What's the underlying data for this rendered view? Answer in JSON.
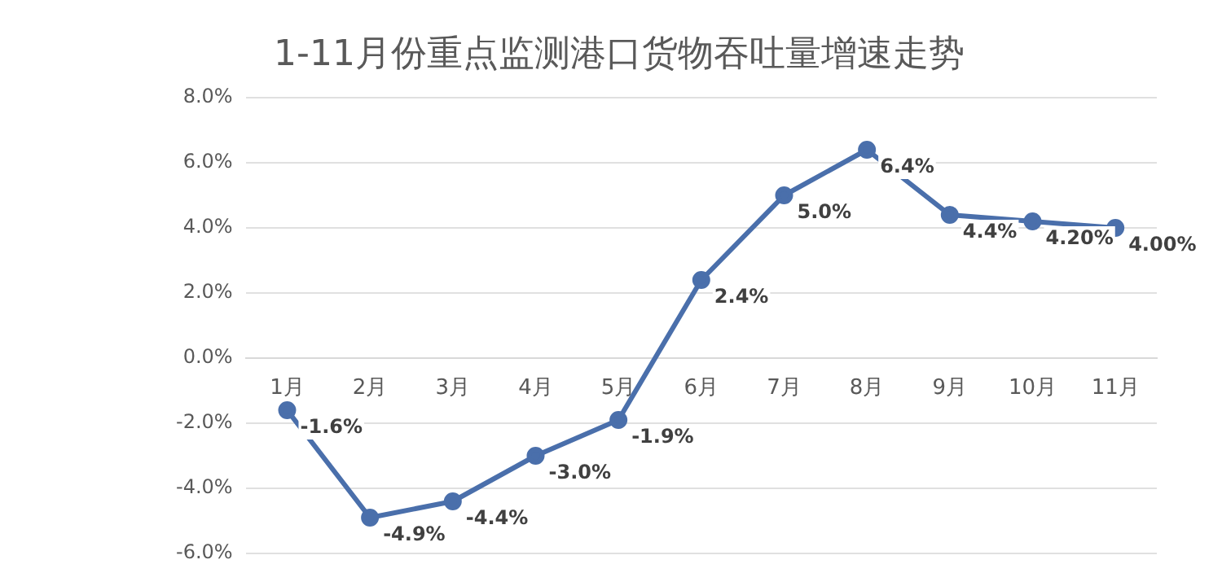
{
  "chart_data": {
    "type": "line",
    "title": "1-11月份重点监测港口货物吞吐量增速走势",
    "categories": [
      "1月",
      "2月",
      "3月",
      "4月",
      "5月",
      "6月",
      "7月",
      "8月",
      "9月",
      "10月",
      "11月"
    ],
    "series": [
      {
        "color": "#4a6fab",
        "values": [
          -1.6,
          -4.9,
          -4.4,
          -3.0,
          -1.9,
          2.4,
          5.0,
          6.4,
          4.4,
          4.2,
          4.0
        ],
        "value_labels": [
          "-1.6%",
          "-4.9%",
          "-4.4%",
          "-3.0%",
          "-1.9%",
          "2.4%",
          "5.0%",
          "6.4%",
          "4.4%",
          "4.20%",
          "4.00%"
        ]
      }
    ],
    "ylim": [
      -6,
      8
    ],
    "yticks": [
      {
        "value": -6,
        "label": "-6.0%"
      },
      {
        "value": -4,
        "label": "-4.0%"
      },
      {
        "value": -2,
        "label": "-2.0%"
      },
      {
        "value": 0,
        "label": "0.0%"
      },
      {
        "value": 2,
        "label": "2.0%"
      },
      {
        "value": 4,
        "label": "4.0%"
      },
      {
        "value": 6,
        "label": "6.0%"
      },
      {
        "value": 8,
        "label": "8.0%"
      }
    ],
    "grid": "y",
    "legend": false,
    "marker": "circle",
    "line_style": "solid"
  }
}
